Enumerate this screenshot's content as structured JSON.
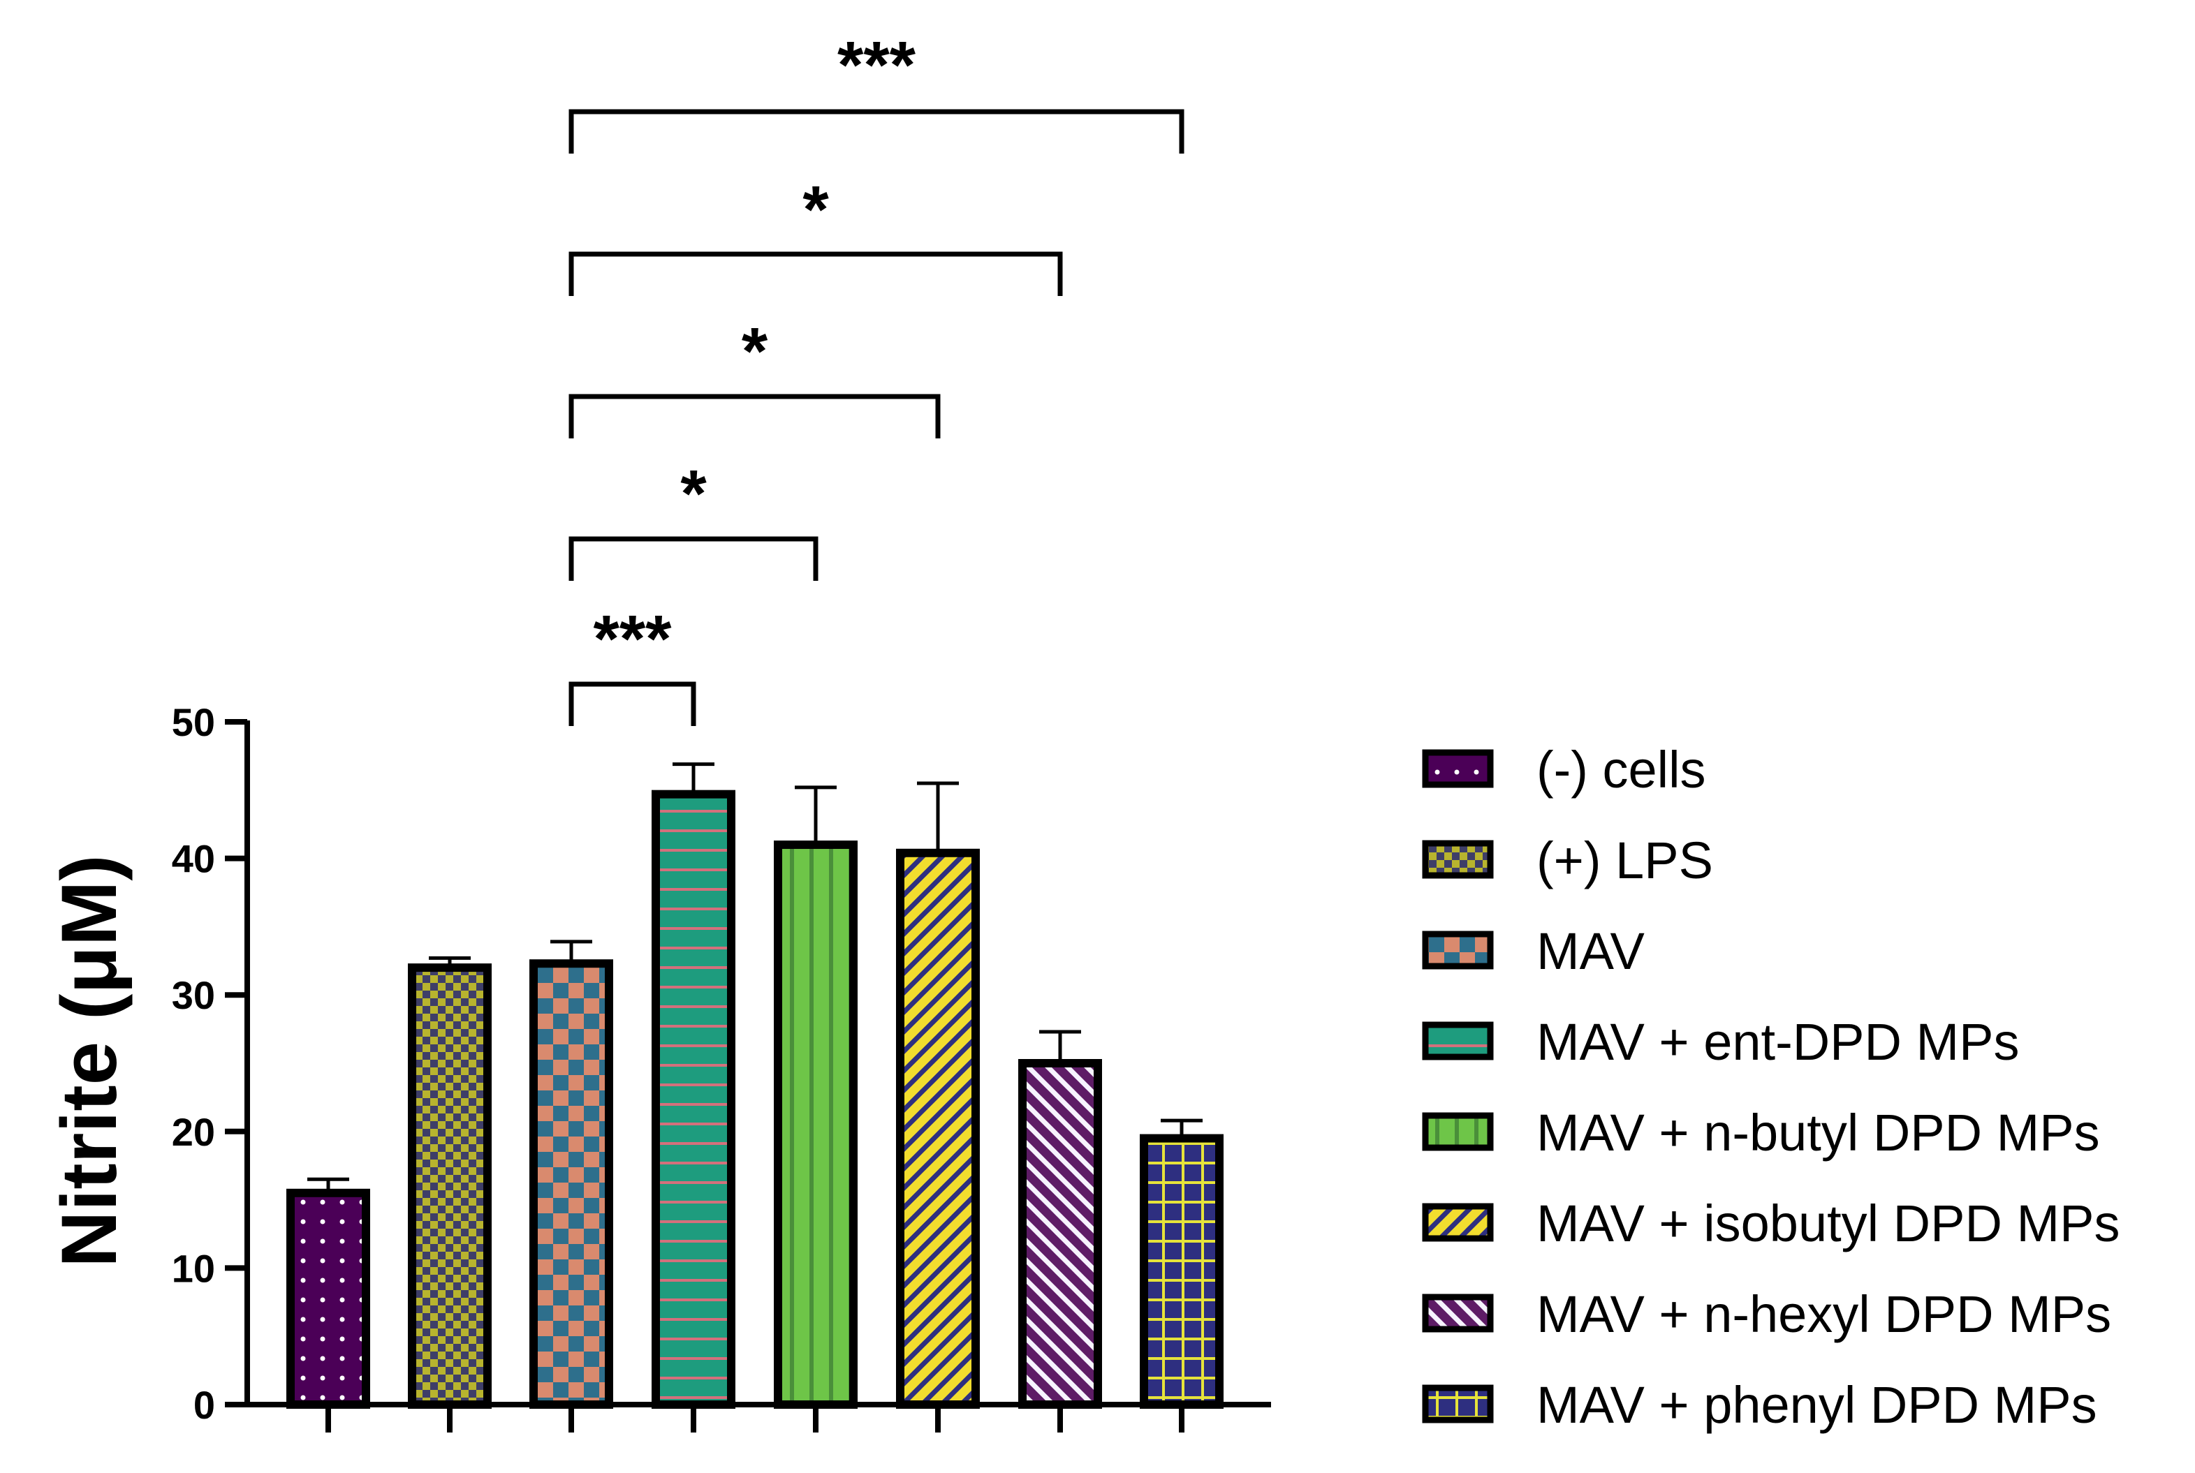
{
  "chart_data": {
    "type": "bar",
    "title": "",
    "xlabel": "",
    "ylabel": "Nitrite (μM)",
    "ylim": [
      0,
      50
    ],
    "yticks": [
      0,
      10,
      20,
      30,
      40,
      50
    ],
    "categories": [
      "(-) cells",
      "(+) LPS",
      "MAV",
      "MAV + ent-DPD MPs",
      "MAV + n-butyl DPD MPs",
      "MAV + isobutyl DPD MPs",
      "MAV + n-hexyl DPD MPs",
      "MAV + phenyl DPD MPs"
    ],
    "values": [
      15.5,
      32.0,
      32.3,
      44.7,
      41.0,
      40.4,
      25.0,
      19.5
    ],
    "errors": [
      1.0,
      0.7,
      1.6,
      2.2,
      4.2,
      5.1,
      2.3,
      1.3
    ],
    "patterns": [
      "dots",
      "checker-fine",
      "checker",
      "hlines",
      "vlines",
      "diag",
      "diag-rev",
      "grid"
    ],
    "colors": {
      "fill": [
        "#4b0057",
        "#b8b42e",
        "#d98a6e",
        "#1e9c7e",
        "#6ec548",
        "#f2dd2e",
        "#5e1c66",
        "#2e2f80"
      ],
      "pattern": [
        "#ffffff",
        "#3e3e68",
        "#2e6f8c",
        "#d4707c",
        "#4a8f3a",
        "#2e2f80",
        "#f7f3ff",
        "#e6e33a"
      ]
    },
    "legend_position": "right",
    "significance": [
      {
        "from": 2,
        "to": 3,
        "label": "***"
      },
      {
        "from": 2,
        "to": 4,
        "label": "*"
      },
      {
        "from": 2,
        "to": 5,
        "label": "*"
      },
      {
        "from": 2,
        "to": 6,
        "label": "*"
      },
      {
        "from": 2,
        "to": 7,
        "label": "***"
      }
    ]
  }
}
